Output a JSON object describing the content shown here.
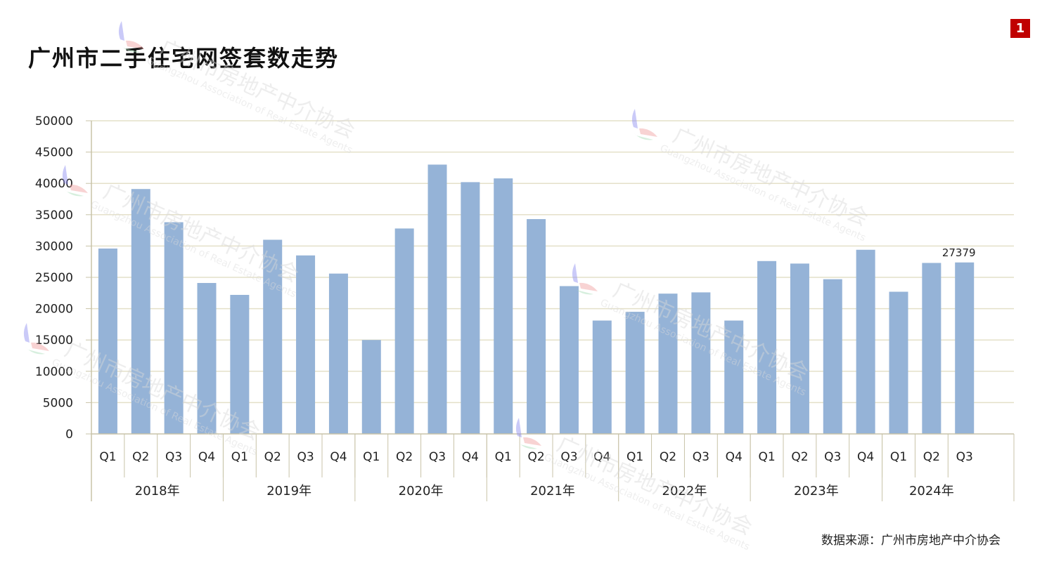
{
  "header": {
    "title": "广州市二手住宅网签套数走势",
    "page_number": "1"
  },
  "footer": {
    "source": "数据来源：广州市房地产中介协会"
  },
  "watermark": {
    "text": "广州市房地产中介协会",
    "subtext": "Guangzhou Association of Real Estate Agents"
  },
  "chart_data": {
    "type": "bar",
    "title": "广州市二手住宅网签套数走势",
    "xlabel": "",
    "ylabel": "",
    "ylim": [
      0,
      50000
    ],
    "yticks": [
      0,
      5000,
      10000,
      15000,
      20000,
      25000,
      30000,
      35000,
      40000,
      45000,
      50000
    ],
    "grid": true,
    "bar_color": "#95b3d7",
    "years": [
      {
        "label": "2018年",
        "quarters": 4
      },
      {
        "label": "2019年",
        "quarters": 4
      },
      {
        "label": "2020年",
        "quarters": 4
      },
      {
        "label": "2021年",
        "quarters": 4
      },
      {
        "label": "2022年",
        "quarters": 4
      },
      {
        "label": "2023年",
        "quarters": 4
      },
      {
        "label": "2024年",
        "quarters": 3
      }
    ],
    "categories": [
      "Q1",
      "Q2",
      "Q3",
      "Q4",
      "Q1",
      "Q2",
      "Q3",
      "Q4",
      "Q1",
      "Q2",
      "Q3",
      "Q4",
      "Q1",
      "Q2",
      "Q3",
      "Q4",
      "Q1",
      "Q2",
      "Q3",
      "Q4",
      "Q1",
      "Q2",
      "Q3",
      "Q4",
      "Q1",
      "Q2",
      "Q3"
    ],
    "values": [
      29600,
      39100,
      33800,
      24100,
      22200,
      31000,
      28500,
      25600,
      15000,
      32800,
      43000,
      40200,
      40800,
      34300,
      23600,
      18100,
      19500,
      22400,
      22600,
      18100,
      27600,
      27200,
      24700,
      29400,
      22700,
      27300,
      27379
    ],
    "data_labels": [
      {
        "index": 26,
        "text": "27379"
      }
    ]
  }
}
